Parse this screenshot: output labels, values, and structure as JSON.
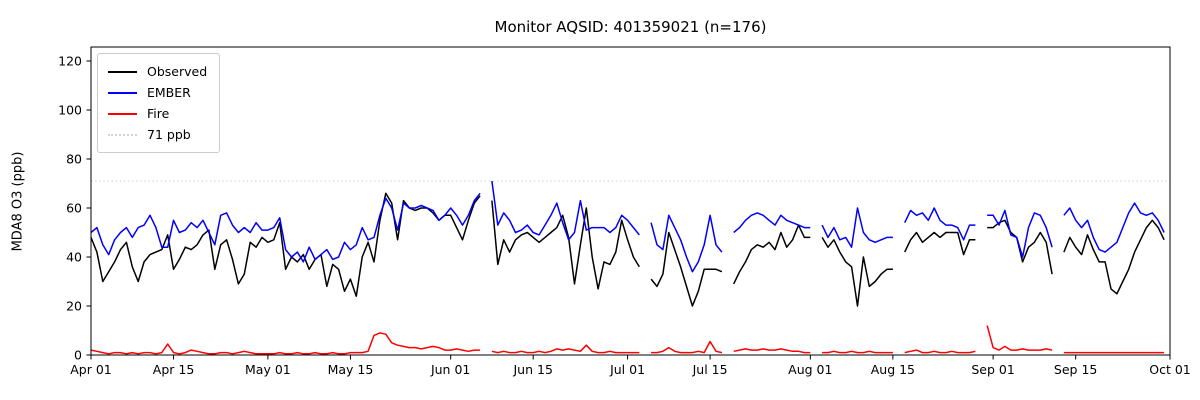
{
  "title": "Monitor AQSID: 401359021 (n=176)",
  "ylabel": "MDA8 O3 (ppb)",
  "legend": {
    "entries": [
      {
        "label": "Observed",
        "color": "#000000",
        "dash": "solid"
      },
      {
        "label": "EMBER",
        "color": "#0000ff",
        "dash": "solid"
      },
      {
        "label": "Fire",
        "color": "#ff0000",
        "dash": "solid"
      },
      {
        "label": "71 ppb",
        "color": "#d3d3d3",
        "dash": "dotted"
      }
    ]
  },
  "chart_data": {
    "type": "line",
    "title": "Monitor AQSID: 401359021 (n=176)",
    "xlabel": "",
    "ylabel": "MDA8 O3 (ppb)",
    "ylim": [
      0,
      125
    ],
    "yticks": [
      0,
      20,
      40,
      60,
      80,
      100,
      120
    ],
    "x_unit": "daily values, index 0 = Apr 01, index 182 = Sep 30",
    "x_days_total": 183,
    "xticks": [
      {
        "day": 0,
        "label": "Apr 01"
      },
      {
        "day": 14,
        "label": "Apr 15"
      },
      {
        "day": 30,
        "label": "May 01"
      },
      {
        "day": 44,
        "label": "May 15"
      },
      {
        "day": 61,
        "label": "Jun 01"
      },
      {
        "day": 75,
        "label": "Jun 15"
      },
      {
        "day": 91,
        "label": "Jul 01"
      },
      {
        "day": 105,
        "label": "Jul 15"
      },
      {
        "day": 122,
        "label": "Aug 01"
      },
      {
        "day": 136,
        "label": "Aug 15"
      },
      {
        "day": 153,
        "label": "Sep 01"
      },
      {
        "day": 167,
        "label": "Sep 15"
      },
      {
        "day": 183,
        "label": "Oct 01"
      }
    ],
    "threshold": {
      "label": "71 ppb",
      "value": 71,
      "color": "#d3d3d3",
      "style": "dotted"
    },
    "grid": false,
    "legend_position": "upper-left",
    "series": [
      {
        "name": "Observed",
        "color": "#000000",
        "values": [
          48,
          42,
          30,
          34,
          38,
          43,
          46,
          36,
          30,
          38,
          41,
          42,
          43,
          49,
          35,
          39,
          44,
          43,
          45,
          49,
          51,
          35,
          45,
          47,
          39,
          29,
          33,
          46,
          44,
          48,
          46,
          47,
          54,
          35,
          40,
          38,
          41,
          35,
          39,
          41,
          28,
          37,
          35,
          26,
          31,
          24,
          40,
          46,
          38,
          55,
          66,
          62,
          47,
          63,
          60,
          59,
          60,
          60,
          58,
          55,
          57,
          57,
          52,
          47,
          55,
          62,
          65,
          null,
          63,
          37,
          47,
          42,
          47,
          49,
          50,
          48,
          46,
          48,
          50,
          52,
          57,
          48,
          29,
          45,
          60,
          40,
          27,
          38,
          37,
          42,
          55,
          47,
          40,
          36,
          null,
          31,
          28,
          33,
          50,
          43,
          36,
          28,
          20,
          26,
          35,
          35,
          35,
          34,
          null,
          29,
          34,
          38,
          43,
          45,
          44,
          46,
          43,
          50,
          44,
          47,
          53,
          48,
          48,
          null,
          48,
          44,
          47,
          42,
          38,
          36,
          20,
          40,
          28,
          30,
          33,
          35,
          35,
          null,
          42,
          47,
          50,
          46,
          48,
          50,
          48,
          50,
          50,
          50,
          41,
          47,
          47,
          null,
          52,
          52,
          54,
          55,
          50,
          48,
          38,
          44,
          46,
          50,
          46,
          33,
          null,
          42,
          48,
          44,
          41,
          49,
          43,
          38,
          38,
          27,
          25,
          30,
          35,
          42,
          47,
          52,
          55,
          52,
          47
        ]
      },
      {
        "name": "EMBER",
        "color": "#0000ff",
        "values": [
          50,
          52,
          45,
          41,
          47,
          50,
          52,
          48,
          52,
          53,
          57,
          52,
          44,
          44,
          55,
          50,
          51,
          54,
          52,
          55,
          50,
          45,
          57,
          58,
          53,
          50,
          52,
          50,
          54,
          51,
          51,
          52,
          56,
          43,
          40,
          42,
          38,
          44,
          39,
          41,
          43,
          39,
          40,
          46,
          43,
          45,
          52,
          47,
          48,
          57,
          64,
          60,
          51,
          62,
          60,
          60,
          61,
          60,
          59,
          55,
          57,
          60,
          57,
          53,
          57,
          63,
          66,
          null,
          71,
          53,
          58,
          55,
          50,
          51,
          53,
          50,
          49,
          53,
          57,
          62,
          54,
          47,
          50,
          63,
          51,
          52,
          52,
          52,
          50,
          52,
          57,
          55,
          52,
          49,
          null,
          54,
          45,
          43,
          57,
          52,
          47,
          40,
          34,
          38,
          45,
          57,
          45,
          42,
          null,
          50,
          52,
          55,
          57,
          58,
          57,
          55,
          53,
          57,
          55,
          54,
          53,
          52,
          52,
          null,
          53,
          48,
          52,
          47,
          48,
          44,
          60,
          50,
          47,
          46,
          47,
          48,
          48,
          null,
          54,
          59,
          57,
          58,
          55,
          60,
          55,
          53,
          53,
          52,
          47,
          53,
          53,
          null,
          57,
          57,
          53,
          59,
          49,
          48,
          40,
          52,
          58,
          57,
          52,
          44,
          null,
          57,
          60,
          55,
          52,
          55,
          48,
          43,
          42,
          44,
          46,
          52,
          58,
          62,
          58,
          57,
          58,
          55,
          50
        ]
      },
      {
        "name": "Fire",
        "color": "#ff0000",
        "values": [
          2,
          1.5,
          1,
          0.5,
          1,
          1,
          0.5,
          1,
          0.5,
          1,
          1,
          0.5,
          1,
          4.5,
          1,
          0.5,
          1,
          2,
          1.5,
          1,
          0.5,
          0.5,
          1,
          1,
          0.5,
          1,
          1.5,
          1,
          0.5,
          0.5,
          0.5,
          0.5,
          1,
          0.5,
          0.5,
          1,
          0.5,
          0.5,
          1,
          0.5,
          0.5,
          1,
          0.5,
          0.5,
          1,
          1,
          1,
          1.5,
          8,
          9,
          8.5,
          5,
          4,
          3.5,
          3,
          3,
          2.5,
          3,
          3.5,
          3,
          2,
          2,
          2.5,
          2,
          1.5,
          2,
          2,
          null,
          1.5,
          1,
          1.5,
          1,
          1,
          1.5,
          1,
          1,
          1.5,
          1,
          1.5,
          2.5,
          2,
          2.5,
          2,
          1.5,
          4,
          1.5,
          1,
          1,
          1.5,
          1,
          1,
          1,
          1,
          1,
          null,
          1,
          1,
          1.5,
          3,
          1.5,
          1,
          1,
          1,
          1.5,
          1,
          5.5,
          1.5,
          1,
          null,
          1.5,
          2,
          2.5,
          2,
          2,
          2.5,
          2,
          2,
          2.5,
          2,
          1.5,
          1.5,
          1,
          1,
          null,
          1,
          1,
          1.5,
          1,
          1,
          1.5,
          1,
          1,
          1.5,
          1,
          1,
          1,
          1,
          null,
          1,
          1.5,
          2,
          1,
          1,
          1.5,
          1,
          1,
          1.5,
          1,
          1,
          1,
          1.5,
          null,
          12,
          3,
          2,
          3.5,
          2,
          2,
          2.5,
          2,
          2,
          2,
          2.5,
          2,
          null,
          1,
          1,
          1,
          1,
          1,
          1,
          1,
          1,
          1,
          1,
          1,
          1,
          1,
          1,
          1,
          1,
          1,
          1
        ]
      }
    ]
  }
}
